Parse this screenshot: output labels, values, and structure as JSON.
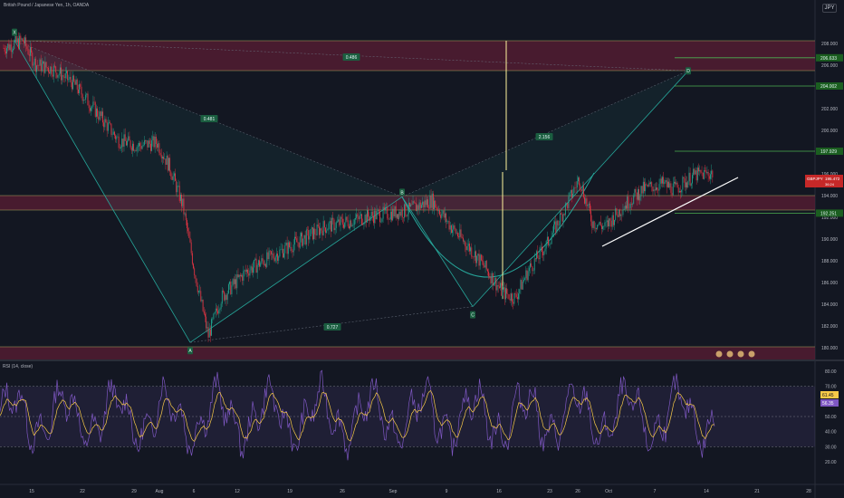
{
  "header": {
    "symbol_title": "British Pound / Japanese Yen, 1h, OANDA",
    "currency": "JPY"
  },
  "rsi": {
    "label": "RSI (14, close)",
    "value_label": "61.45",
    "ma_label": "56.35"
  },
  "price_tags": {
    "symbol": "GBPJPY",
    "last": "195.472",
    "countdown": "36:24"
  },
  "pattern": {
    "points": [
      "X",
      "A",
      "B",
      "C",
      "D"
    ],
    "ratios": {
      "xb": "0.486",
      "xb2": "0.481",
      "ac": "0.727",
      "bd": "2.156"
    }
  },
  "levels": [
    "206.633",
    "204.002",
    "197.929",
    "192.251"
  ],
  "colors": {
    "bg": "#131722",
    "up": "#22ab94",
    "down": "#f23645",
    "zone": "#5b1e34",
    "pattern": "#26a69a",
    "rsi": "#7e57c2",
    "rsi_ma": "#f7c948",
    "trend": "#ffffff"
  },
  "chart_data": {
    "type": "candlestick",
    "x_ticks": [
      "15",
      "22",
      "29",
      "Aug",
      "6",
      "12",
      "19",
      "26",
      "Sep",
      "9",
      "16",
      "23",
      "26",
      "Oct",
      "7",
      "14",
      "21",
      "28"
    ],
    "y_ticks": [
      "208.000",
      "206.000",
      "204.000",
      "202.000",
      "200.000",
      "198.000",
      "196.000",
      "194.000",
      "192.000",
      "190.000",
      "188.000",
      "186.000",
      "184.000",
      "182.000",
      "180.000"
    ],
    "ylim": [
      179,
      209
    ],
    "rsi_ticks": [
      "80.00",
      "70.00",
      "60.00",
      "50.00",
      "40.00",
      "30.00",
      "20.00"
    ],
    "rsi_ylim": [
      10,
      85
    ],
    "path": [
      [
        0,
        207.5
      ],
      [
        3,
        208.2
      ],
      [
        5,
        206.0
      ],
      [
        8,
        205.5
      ],
      [
        11,
        204.2
      ],
      [
        14,
        202.0
      ],
      [
        18,
        199.0
      ],
      [
        21,
        198.5
      ],
      [
        24,
        198.8
      ],
      [
        26,
        196.5
      ],
      [
        28,
        193.0
      ],
      [
        30,
        186.5
      ],
      [
        32,
        181.0
      ],
      [
        34,
        184.5
      ],
      [
        38,
        187.0
      ],
      [
        44,
        189.0
      ],
      [
        50,
        191.0
      ],
      [
        57,
        192.0
      ],
      [
        63,
        192.5
      ],
      [
        67,
        193.5
      ],
      [
        70,
        191.0
      ],
      [
        73,
        189.0
      ],
      [
        75,
        187.5
      ],
      [
        78,
        185.0
      ],
      [
        80,
        184.5
      ],
      [
        82,
        187.0
      ],
      [
        85,
        189.5
      ],
      [
        88,
        193.0
      ],
      [
        90,
        195.5
      ],
      [
        92,
        191.5
      ],
      [
        94,
        191.0
      ],
      [
        97,
        193.0
      ],
      [
        100,
        194.5
      ],
      [
        103,
        195.0
      ],
      [
        105,
        194.5
      ],
      [
        108,
        195.8
      ],
      [
        111,
        196.0
      ]
    ]
  }
}
